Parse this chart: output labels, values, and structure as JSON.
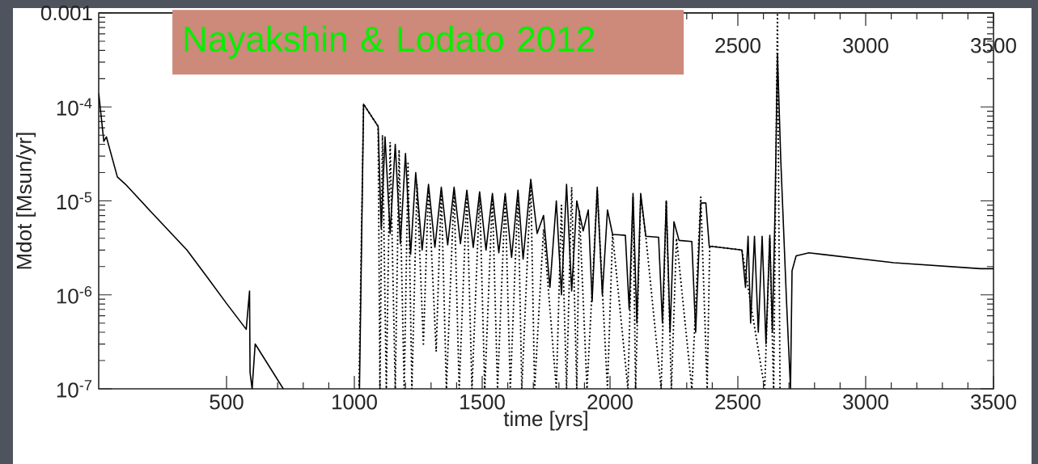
{
  "chart_data": {
    "type": "line",
    "xlabel": "time [yrs]",
    "ylabel": "Mdot  [Msun/yr]",
    "annotations": [
      "Nayakshin & Lodato 2012"
    ],
    "log": "y",
    "xlim": [
      0,
      3500
    ],
    "xticks": [
      500,
      1000,
      1500,
      2000,
      2500,
      3000,
      3500
    ],
    "x2lim": [
      0,
      3500
    ],
    "x2ticks": [
      {
        "value": 500,
        "label": null
      },
      {
        "value": 1000,
        "label": null
      },
      {
        "value": 1500,
        "label": null
      },
      {
        "value": 2000,
        "label": null
      },
      2500,
      3000,
      3500
    ],
    "ylim": [
      1e-07,
      0.001
    ],
    "yticks": [
      {
        "value": 1e-07,
        "label": "10$^{-7}$"
      },
      {
        "value": 1e-06,
        "label": "10$^{-6}$"
      },
      {
        "value": 1e-05,
        "label": "10$^{-5}$"
      },
      {
        "value": 0.0001,
        "label": "10$^{-4}$"
      },
      {
        "value": 0.001,
        "label": "0.001"
      }
    ],
    "series": [
      {
        "color": "#000000",
        "line_style": "solid",
        "x": [
          0,
          20,
          30,
          73,
          105,
          200,
          345,
          420,
          500,
          577,
          590,
          592,
          600,
          612,
          722,
          900,
          1020,
          1036,
          1093,
          1105,
          1120,
          1140,
          1160,
          1180,
          1200,
          1220,
          1240,
          1265,
          1290,
          1315,
          1340,
          1365,
          1390,
          1415,
          1440,
          1465,
          1490,
          1515,
          1540,
          1565,
          1590,
          1615,
          1640,
          1660,
          1690,
          1715,
          1740,
          1765,
          1790,
          1810,
          1830,
          1850,
          1870,
          1895,
          1915,
          1930,
          1950,
          1970,
          1990,
          2010,
          2060,
          2075,
          2090,
          2105,
          2120,
          2140,
          2190,
          2205,
          2220,
          2235,
          2250,
          2270,
          2320,
          2335,
          2355,
          2375,
          2388,
          2516,
          2530,
          2540,
          2550,
          2565,
          2580,
          2595,
          2610,
          2625,
          2635,
          2645,
          2655,
          2668,
          2690,
          2706,
          2712,
          2728,
          2778,
          3110,
          3450,
          3500
        ],
        "values": [
          0.00014,
          4.3e-05,
          4.8e-05,
          1.8e-05,
          1.5e-05,
          7.9e-06,
          3e-06,
          1.6e-06,
          8.1e-07,
          4.3e-07,
          1.1e-06,
          1.5e-07,
          1e-07,
          3e-07,
          1e-07,
          null,
          1e-07,
          0.000107,
          6.2e-05,
          5.1e-06,
          4.8e-05,
          4.5e-06,
          4e-05,
          3.5e-06,
          3.2e-05,
          2.7e-06,
          2e-05,
          3e-06,
          1.5e-05,
          3.2e-06,
          1.4e-05,
          3.4e-06,
          1.4e-05,
          3.5e-06,
          1.3e-05,
          3.2e-06,
          1.25e-05,
          3e-06,
          1.2e-05,
          2.8e-06,
          1.2e-05,
          2.5e-06,
          1.3e-05,
          2.4e-06,
          1.7e-05,
          4.5e-06,
          7e-06,
          1.2e-06,
          1e-05,
          1e-06,
          1.5e-05,
          1.1e-06,
          1e-05,
          4.8e-06,
          8e-06,
          8.5e-07,
          1.4e-05,
          1e-06,
          8e-06,
          4.4e-06,
          4.3e-06,
          7e-07,
          1.2e-05,
          5e-07,
          1.2e-05,
          4.2e-06,
          4.1e-06,
          5e-07,
          1e-05,
          4e-07,
          6e-06,
          3.8e-06,
          3.7e-06,
          4e-07,
          9.5e-06,
          9.5e-06,
          3.3e-06,
          3e-06,
          1.2e-06,
          4.2e-06,
          5e-07,
          4.2e-06,
          4e-07,
          4.2e-06,
          3e-07,
          4.3e-06,
          4e-07,
          7e-06,
          0.00036,
          2.7e-05,
          9e-07,
          1e-07,
          1.8e-06,
          2.6e-06,
          2.8e-06,
          2.2e-06,
          1.9e-06,
          1.9e-06
        ]
      },
      {
        "color": "#000000",
        "line_style": "dotted",
        "x": [
          1018,
          1036,
          1093,
          1100,
          1110,
          1125,
          1140,
          1160,
          1175,
          1195,
          1210,
          1225,
          1245,
          1270,
          1290,
          1320,
          1340,
          1360,
          1390,
          1410,
          1440,
          1460,
          1490,
          1510,
          1540,
          1560,
          1590,
          1610,
          1640,
          1655,
          1690,
          1705,
          1740,
          1790,
          1810,
          1830,
          1850,
          1870,
          1880,
          1910,
          1950,
          1990,
          2010,
          2070,
          2090,
          2100,
          2120,
          2140,
          2200,
          2220,
          2240,
          2260,
          2320,
          2355,
          2380,
          2390,
          2516,
          2605,
          2625,
          2640,
          2655,
          2665
        ],
        "values": [
          1e-07,
          0.000107,
          6.2e-05,
          1e-07,
          5e-05,
          1e-07,
          4.2e-05,
          1e-07,
          3.5e-05,
          1e-07,
          2.5e-05,
          1e-07,
          1.5e-05,
          3e-07,
          1.4e-05,
          2.5e-07,
          1.3e-05,
          1e-07,
          1.3e-05,
          1e-07,
          1.2e-05,
          1e-07,
          1.2e-05,
          1e-07,
          1.1e-05,
          1e-07,
          1.1e-05,
          1e-07,
          1.2e-05,
          1e-07,
          1.6e-05,
          1e-07,
          5e-06,
          1e-07,
          9e-06,
          1e-07,
          1.4e-05,
          1e-07,
          8e-06,
          1e-07,
          1.3e-05,
          1e-07,
          4.4e-06,
          1e-07,
          1.1e-05,
          1e-07,
          1.1e-05,
          4.2e-06,
          1e-07,
          1e-05,
          1e-07,
          4e-06,
          1e-07,
          1.1e-05,
          1e-07,
          3.3e-06,
          3e-06,
          1e-07,
          4e-06,
          1e-07,
          0.001,
          1e-07
        ]
      }
    ]
  }
}
